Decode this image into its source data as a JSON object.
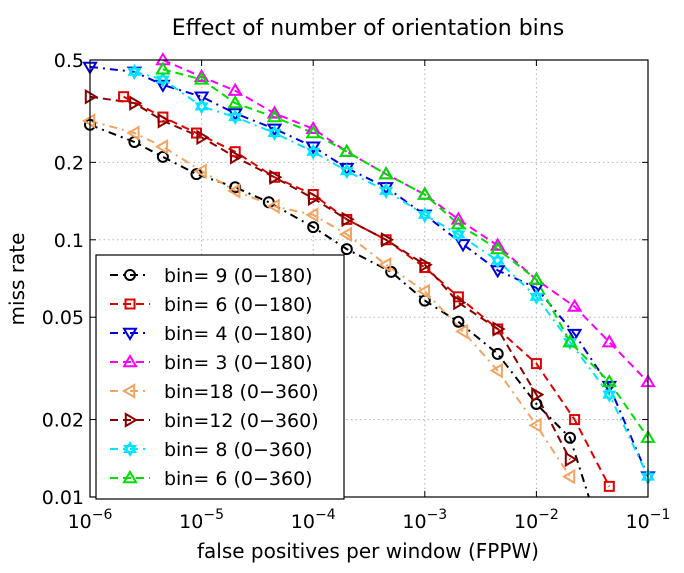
{
  "chart_data": {
    "type": "line",
    "title": "Effect of number of orientation bins",
    "xlabel": "false positives per window (FPPW)",
    "ylabel": "miss rate",
    "xscale": "log",
    "yscale": "log",
    "xlim": [
      1e-06,
      0.1
    ],
    "ylim": [
      0.01,
      0.5
    ],
    "x_ticks": [
      {
        "value": 1e-06,
        "base": "10",
        "exp": "−6"
      },
      {
        "value": 1e-05,
        "base": "10",
        "exp": "−5"
      },
      {
        "value": 0.0001,
        "base": "10",
        "exp": "−4"
      },
      {
        "value": 0.001,
        "base": "10",
        "exp": "−3"
      },
      {
        "value": 0.01,
        "base": "10",
        "exp": "−2"
      },
      {
        "value": 0.1,
        "base": "10",
        "exp": "−1"
      }
    ],
    "y_ticks": [
      {
        "value": 0.5,
        "label": "0.5"
      },
      {
        "value": 0.2,
        "label": "0.2"
      },
      {
        "value": 0.1,
        "label": "0.1"
      },
      {
        "value": 0.05,
        "label": "0.05"
      },
      {
        "value": 0.02,
        "label": "0.02"
      },
      {
        "value": 0.01,
        "label": "0.01"
      }
    ],
    "grid": true,
    "legend_position": "bottom-left",
    "series": [
      {
        "name": "bin=  9 (0−180)",
        "color": "#000000",
        "marker": "circle",
        "dash": "8 5 2 5",
        "x": [
          1e-06,
          2.5e-06,
          4.5e-06,
          9e-06,
          2e-05,
          4e-05,
          0.0001,
          0.0002,
          0.0005,
          0.001,
          0.002,
          0.0045,
          0.01,
          0.02,
          0.03
        ],
        "y": [
          0.28,
          0.24,
          0.21,
          0.18,
          0.16,
          0.14,
          0.112,
          0.092,
          0.075,
          0.058,
          0.048,
          0.036,
          0.023,
          0.017,
          0.0098
        ]
      },
      {
        "name": "bin=  6 (0−180)",
        "color": "#e00000",
        "marker": "square",
        "dash": "8 5",
        "x": [
          2e-06,
          4.5e-06,
          9e-06,
          2e-05,
          4.5e-05,
          0.0001,
          0.0002,
          0.00045,
          0.001,
          0.002,
          0.0045,
          0.01,
          0.022,
          0.045
        ],
        "y": [
          0.36,
          0.3,
          0.26,
          0.22,
          0.175,
          0.15,
          0.12,
          0.1,
          0.078,
          0.06,
          0.045,
          0.033,
          0.02,
          0.011
        ]
      },
      {
        "name": "bin=  4 (0−180)",
        "color": "#0000dd",
        "marker": "triangle-down",
        "dash": "8 5 2 5",
        "x": [
          1e-06,
          2.5e-06,
          4.5e-06,
          1e-05,
          2e-05,
          4.5e-05,
          0.0001,
          0.0002,
          0.00045,
          0.001,
          0.0022,
          0.0045,
          0.01,
          0.022,
          0.045,
          0.1
        ],
        "y": [
          0.47,
          0.45,
          0.4,
          0.36,
          0.31,
          0.27,
          0.23,
          0.19,
          0.16,
          0.125,
          0.096,
          0.076,
          0.065,
          0.043,
          0.027,
          0.012
        ]
      },
      {
        "name": "bin=  3 (0−180)",
        "color": "#ff00ff",
        "marker": "triangle-up",
        "dash": "8 5",
        "x": [
          4.5e-06,
          1e-05,
          2e-05,
          4.5e-05,
          0.0001,
          0.0002,
          0.00045,
          0.001,
          0.002,
          0.0045,
          0.01,
          0.022,
          0.045,
          0.1
        ],
        "y": [
          0.5,
          0.43,
          0.38,
          0.31,
          0.27,
          0.22,
          0.18,
          0.15,
          0.12,
          0.095,
          0.07,
          0.055,
          0.04,
          0.028
        ]
      },
      {
        "name": "bin=18 (0−360)",
        "color": "#f4a460",
        "marker": "triangle-left",
        "dash": "8 5 2 5",
        "x": [
          1e-06,
          2.5e-06,
          4.5e-06,
          1e-05,
          2e-05,
          4.5e-05,
          0.0001,
          0.0002,
          0.00045,
          0.001,
          0.0022,
          0.0045,
          0.01,
          0.02
        ],
        "y": [
          0.29,
          0.26,
          0.23,
          0.185,
          0.155,
          0.135,
          0.125,
          0.105,
          0.08,
          0.063,
          0.044,
          0.031,
          0.019,
          0.012
        ]
      },
      {
        "name": "bin=12 (0−360)",
        "color": "#8b0000",
        "marker": "triangle-right",
        "dash": "8 5",
        "x": [
          1e-06,
          2.5e-06,
          4.5e-06,
          1e-05,
          2e-05,
          4.5e-05,
          0.0001,
          0.0002,
          0.00045,
          0.001,
          0.002,
          0.0045,
          0.01,
          0.02
        ],
        "y": [
          0.36,
          0.34,
          0.29,
          0.25,
          0.21,
          0.175,
          0.145,
          0.12,
          0.1,
          0.08,
          0.057,
          0.045,
          0.025,
          0.014
        ]
      },
      {
        "name": "bin= 8 (0−360)",
        "color": "#00e5ff",
        "marker": "hexagram",
        "dash": "8 5 2 5",
        "x": [
          2.5e-06,
          4.5e-06,
          1e-05,
          2e-05,
          4.5e-05,
          0.0001,
          0.0002,
          0.00045,
          0.001,
          0.002,
          0.0045,
          0.01,
          0.02,
          0.045,
          0.1
        ],
        "y": [
          0.45,
          0.42,
          0.33,
          0.3,
          0.26,
          0.22,
          0.185,
          0.155,
          0.125,
          0.105,
          0.083,
          0.06,
          0.04,
          0.025,
          0.012
        ]
      },
      {
        "name": "bin= 6 (0−360)",
        "color": "#00dd00",
        "marker": "triangle-up",
        "dash": "8 5",
        "x": [
          4.5e-06,
          1e-05,
          2e-05,
          4.5e-05,
          0.0001,
          0.0002,
          0.00045,
          0.001,
          0.002,
          0.0045,
          0.01,
          0.02,
          0.045,
          0.1
        ],
        "y": [
          0.46,
          0.42,
          0.34,
          0.3,
          0.26,
          0.22,
          0.18,
          0.15,
          0.115,
          0.092,
          0.07,
          0.04,
          0.028,
          0.017
        ]
      }
    ]
  }
}
